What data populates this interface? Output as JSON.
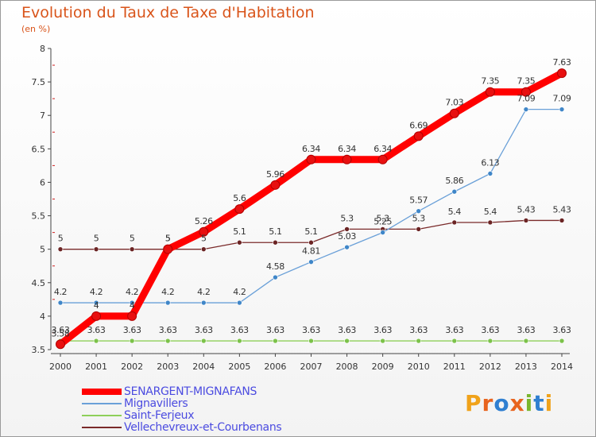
{
  "title": "Evolution du Taux de Taxe d'Habitation",
  "subtitle": "(en %)",
  "brand": {
    "text": "Proxiti",
    "colors": [
      "#f0a21a",
      "#e8641e",
      "#2f7fd1",
      "#e8641e",
      "#7ab62e",
      "#2f7fd1",
      "#f0a21a"
    ]
  },
  "chart_data": {
    "type": "line",
    "title": "Evolution du Taux de Taxe d'Habitation",
    "ylabel": "(en %)",
    "xlabel": "",
    "x": [
      "2000",
      "2001",
      "2002",
      "2003",
      "2004",
      "2005",
      "2006",
      "2007",
      "2008",
      "2009",
      "2010",
      "2011",
      "2012",
      "2013",
      "2014"
    ],
    "ylim": [
      3.5,
      8
    ],
    "yticks": [
      "3.5",
      "4",
      "4.5",
      "5",
      "5.5",
      "6",
      "6.5",
      "7",
      "7.5",
      "8"
    ],
    "grid": false,
    "legend": "bottom-left",
    "series": [
      {
        "name": "SENARGENT-MIGNAFANS",
        "color": "#ff0000",
        "marker": "#e81010",
        "values": [
          3.58,
          4,
          4,
          5,
          5.26,
          5.6,
          5.96,
          6.34,
          6.34,
          6.34,
          6.69,
          7.03,
          7.35,
          7.35,
          7.63
        ],
        "labels": [
          "3.58",
          "4",
          "4",
          "5",
          "5.26",
          "5.6",
          "5.96",
          "6.34",
          "6.34",
          "6.34",
          "6.69",
          "7.03",
          "7.35",
          "7.35",
          "7.63"
        ]
      },
      {
        "name": "Mignavillers",
        "color": "#6aa0d8",
        "marker": "#3f86c8",
        "values": [
          4.2,
          4.2,
          4.2,
          4.2,
          4.2,
          4.2,
          4.58,
          4.81,
          5.03,
          5.25,
          5.57,
          5.86,
          6.13,
          7.09,
          7.09
        ],
        "labels": [
          "4.2",
          "4.2",
          "4.2",
          "4.2",
          "4.2",
          "4.2",
          "4.58",
          "4.81",
          "5.03",
          "5.25",
          "5.57",
          "5.86",
          "6.13",
          "7.09",
          "7.09"
        ]
      },
      {
        "name": "Saint-Ferjeux",
        "color": "#8ed05a",
        "marker": "#7cc24a",
        "values": [
          3.63,
          3.63,
          3.63,
          3.63,
          3.63,
          3.63,
          3.63,
          3.63,
          3.63,
          3.63,
          3.63,
          3.63,
          3.63,
          3.63,
          3.63
        ],
        "labels": [
          "3.63",
          "3.63",
          "3.63",
          "3.63",
          "3.63",
          "3.63",
          "3.63",
          "3.63",
          "3.63",
          "3.63",
          "3.63",
          "3.63",
          "3.63",
          "3.63",
          "3.63"
        ]
      },
      {
        "name": "Vellechevreux-et-Courbenans",
        "color": "#7a2a2a",
        "marker": "#6b2424",
        "values": [
          5,
          5,
          5,
          5,
          5,
          5.1,
          5.1,
          5.1,
          5.3,
          5.3,
          5.3,
          5.4,
          5.4,
          5.43,
          5.43
        ],
        "labels": [
          "5",
          "5",
          "5",
          "5",
          "5",
          "5.1",
          "5.1",
          "5.1",
          "5.3",
          "5.3",
          "5.3",
          "5.4",
          "5.4",
          "5.43",
          "5.43"
        ]
      }
    ]
  }
}
